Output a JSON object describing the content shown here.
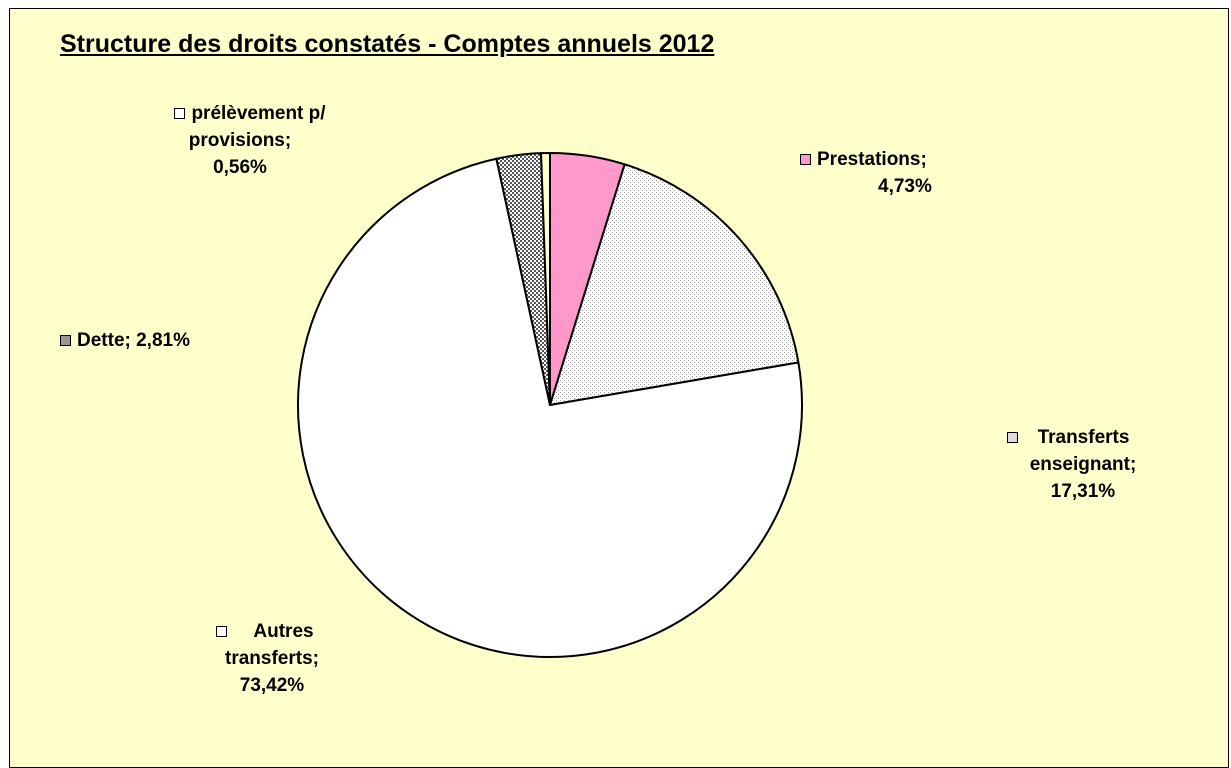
{
  "chart_data": {
    "type": "pie",
    "title": "Structure des droits constatés - Comptes annuels 2012",
    "slices": [
      {
        "name": "Prestations",
        "value": 4.73,
        "label_text": "4,73%",
        "fill": "#ff99cc",
        "pattern": "solid"
      },
      {
        "name": "Transferts enseignant",
        "value": 17.31,
        "label_text": "17,31%",
        "fill": "#ffffff",
        "pattern": "fine-dots"
      },
      {
        "name": "Autres transferts",
        "value": 73.42,
        "label_text": "73,42%",
        "fill": "#ffffff",
        "pattern": "none"
      },
      {
        "name": "Dette",
        "value": 2.81,
        "label_text": "2,81%",
        "fill": "#ffffff",
        "pattern": "checker"
      },
      {
        "name": "prélèvement p/ provisions",
        "value": 0.56,
        "label_text": "0,56%",
        "fill": "#ffffcc",
        "pattern": "solid"
      }
    ],
    "labels": {
      "prestations": {
        "line1": "Prestations;",
        "line2": "4,73%"
      },
      "transferts": {
        "line1": "Transferts",
        "line2": "enseignant;",
        "line3": "17,31%"
      },
      "autres": {
        "line1": "Autres",
        "line2": "transferts;",
        "line3": "73,42%"
      },
      "dette": {
        "line1": "Dette; 2,81%"
      },
      "prelevement": {
        "line1": "prélèvement p/",
        "line2": "provisions;",
        "line3": "0,56%"
      }
    },
    "background": "#ffffcc",
    "legend": "none"
  }
}
